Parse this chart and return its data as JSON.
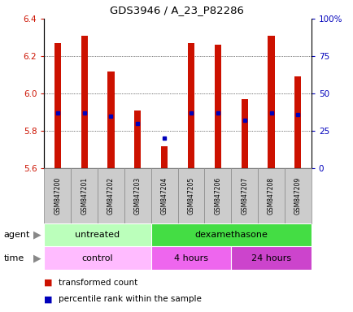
{
  "title": "GDS3946 / A_23_P82286",
  "samples": [
    "GSM847200",
    "GSM847201",
    "GSM847202",
    "GSM847203",
    "GSM847204",
    "GSM847205",
    "GSM847206",
    "GSM847207",
    "GSM847208",
    "GSM847209"
  ],
  "transformed_counts": [
    6.27,
    6.31,
    6.12,
    5.91,
    5.72,
    6.27,
    6.26,
    5.97,
    6.31,
    6.09
  ],
  "percentile_ranks": [
    37,
    37,
    35,
    30,
    20,
    37,
    37,
    32,
    37,
    36
  ],
  "ymin": 5.6,
  "ymax": 6.4,
  "y_ticks": [
    5.6,
    5.8,
    6.0,
    6.2,
    6.4
  ],
  "y2_ticks": [
    0,
    25,
    50,
    75,
    100
  ],
  "bar_color": "#cc1100",
  "dot_color": "#0000bb",
  "agent_groups": [
    {
      "label": "untreated",
      "start": 0,
      "end": 4,
      "color": "#bbffbb"
    },
    {
      "label": "dexamethasone",
      "start": 4,
      "end": 10,
      "color": "#44dd44"
    }
  ],
  "time_groups": [
    {
      "label": "control",
      "start": 0,
      "end": 4,
      "color": "#ffbbff"
    },
    {
      "label": "4 hours",
      "start": 4,
      "end": 7,
      "color": "#ee66ee"
    },
    {
      "label": "24 hours",
      "start": 7,
      "end": 10,
      "color": "#cc44cc"
    }
  ],
  "legend_bar_label": "transformed count",
  "legend_dot_label": "percentile rank within the sample",
  "tick_label_color_left": "#cc1100",
  "tick_label_color_right": "#0000bb",
  "bar_width": 0.25,
  "sample_bg": "#cccccc",
  "sample_border": "#888888"
}
